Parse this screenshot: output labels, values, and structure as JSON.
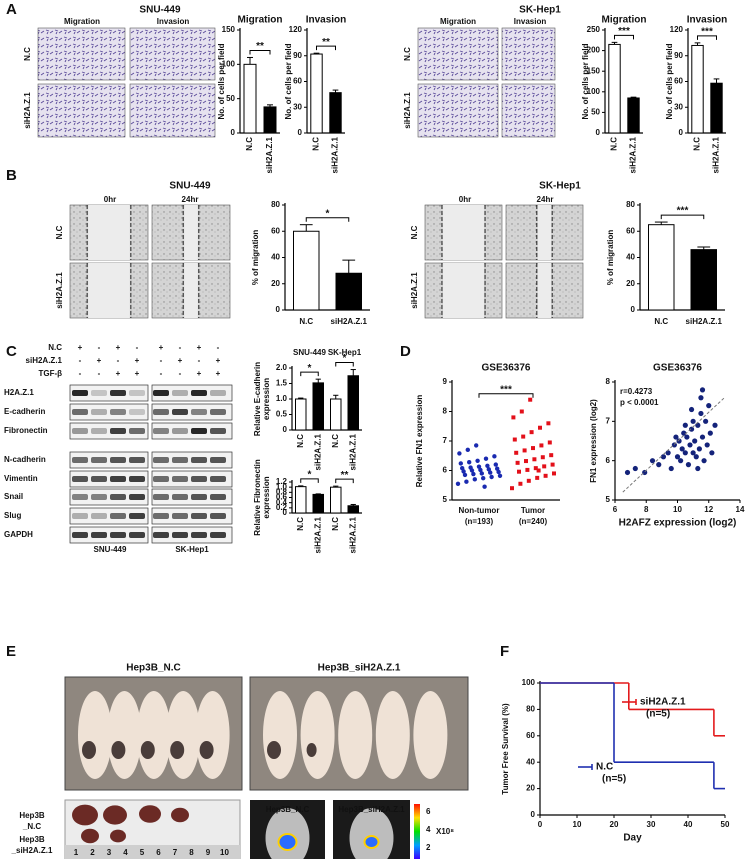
{
  "figure": {
    "panel_labels": [
      "A",
      "B",
      "C",
      "D",
      "E",
      "F"
    ],
    "A": {
      "sections": [
        {
          "cell_line": "SNU-449",
          "column_headers": [
            "Migration",
            "Invasion"
          ],
          "row_labels": [
            "N.C",
            "siH2A.Z.1"
          ]
        },
        {
          "cell_line": "SK-Hep1",
          "column_headers": [
            "Migration",
            "Invasion"
          ],
          "row_labels": [
            "N.C",
            "siH2A.Z.1"
          ]
        }
      ]
    },
    "B": {
      "sections": [
        {
          "cell_line": "SNU-449",
          "column_headers": [
            "0hr",
            "24hr"
          ],
          "row_labels": [
            "N.C",
            "siH2A.Z.1"
          ]
        },
        {
          "cell_line": "SK-Hep1",
          "column_headers": [
            "0hr",
            "24hr"
          ],
          "row_labels": [
            "N.C",
            "siH2A.Z.1"
          ]
        }
      ]
    },
    "C": {
      "conditions": [
        {
          "label": "N.C",
          "signs": [
            "+",
            "-",
            "+",
            "-",
            "+",
            "-",
            "+",
            "-"
          ]
        },
        {
          "label": "siH2A.Z.1",
          "signs": [
            "-",
            "+",
            "-",
            "+",
            "-",
            "+",
            "-",
            "+"
          ]
        },
        {
          "label": "TGF-β",
          "signs": [
            "-",
            "-",
            "+",
            "+",
            "-",
            "-",
            "+",
            "+"
          ]
        }
      ],
      "proteins": [
        "H2A.Z.1",
        "E-cadherin",
        "Fibronectin",
        "N-cadherin",
        "Vimentin",
        "Snail",
        "Slug",
        "GAPDH"
      ],
      "cell_lines": [
        "SNU-449",
        "SK-Hep1"
      ]
    },
    "E": {
      "photo_titles": [
        "Hep3B_N.C",
        "Hep3B_siH2A.Z.1"
      ],
      "tumor_rows": [
        [
          "Hep3B",
          "_N.C"
        ],
        [
          "Hep3B",
          "_siH2A.Z.1"
        ]
      ],
      "ruler": [
        1,
        2,
        3,
        4,
        5,
        6,
        7,
        8,
        9,
        10
      ],
      "imaging_titles": [
        "Hep3B_N.C",
        "Hep3B_siH2A.Z.1"
      ],
      "colorbar_ticks": [
        6,
        4,
        2
      ],
      "colorbar_unit": "X10⁸"
    }
  },
  "chart_data": [
    {
      "type": "bar",
      "title": "Migration",
      "categories": [
        "N.C",
        "siH2A.Z.1"
      ],
      "values": [
        100,
        38
      ],
      "errors": [
        10,
        3
      ],
      "colors": [
        "#ffffff",
        "#000000"
      ],
      "ylabel": "No. of cells per field",
      "ylim": [
        0,
        150
      ],
      "yticks": [
        0,
        50,
        100,
        150
      ],
      "significance": [
        "**"
      ]
    },
    {
      "type": "bar",
      "title": "Invasion",
      "categories": [
        "N.C",
        "siH2A.Z.1"
      ],
      "values": [
        92,
        47
      ],
      "errors": [
        1,
        3
      ],
      "colors": [
        "#ffffff",
        "#000000"
      ],
      "ylabel": "No. of cells per field",
      "ylim": [
        0,
        120
      ],
      "yticks": [
        0,
        30,
        60,
        90,
        120
      ],
      "significance": [
        "**"
      ]
    },
    {
      "type": "bar",
      "title": "Migration",
      "categories": [
        "N.C",
        "siH2A.Z.1"
      ],
      "values": [
        215,
        85
      ],
      "errors": [
        5,
        2
      ],
      "colors": [
        "#ffffff",
        "#000000"
      ],
      "ylabel": "No. of cells per field",
      "ylim": [
        0,
        250
      ],
      "yticks": [
        0,
        50,
        100,
        150,
        200,
        250
      ],
      "significance": [
        "***"
      ]
    },
    {
      "type": "bar",
      "title": "Invasion",
      "categories": [
        "N.C",
        "siH2A.Z.1"
      ],
      "values": [
        102,
        58
      ],
      "errors": [
        3,
        5
      ],
      "colors": [
        "#ffffff",
        "#000000"
      ],
      "ylabel": "No. of cells per field",
      "ylim": [
        0,
        120
      ],
      "yticks": [
        0,
        30,
        60,
        90,
        120
      ],
      "significance": [
        "***"
      ]
    },
    {
      "type": "bar",
      "categories": [
        "N.C",
        "siH2A.Z.1"
      ],
      "values": [
        60,
        28
      ],
      "errors": [
        5,
        10
      ],
      "colors": [
        "#ffffff",
        "#000000"
      ],
      "ylabel": "% of migration",
      "ylim": [
        0,
        80
      ],
      "yticks": [
        0,
        20,
        40,
        60,
        80
      ],
      "significance": [
        "*"
      ]
    },
    {
      "type": "bar",
      "categories": [
        "N.C",
        "siH2A.Z.1"
      ],
      "values": [
        65,
        46
      ],
      "errors": [
        2,
        2
      ],
      "colors": [
        "#ffffff",
        "#000000"
      ],
      "ylabel": "% of migration",
      "ylim": [
        0,
        80
      ],
      "yticks": [
        0,
        20,
        40,
        60,
        80
      ],
      "significance": [
        "***"
      ]
    },
    {
      "type": "bar",
      "groups": [
        "SNU-449",
        "SK-Hep1"
      ],
      "categories": [
        "N.C",
        "siH2A.Z.1",
        "N.C",
        "siH2A.Z.1"
      ],
      "values": [
        1.0,
        1.52,
        1.0,
        1.75
      ],
      "errors": [
        0.03,
        0.12,
        0.12,
        0.2
      ],
      "colors": [
        "#ffffff",
        "#000000",
        "#ffffff",
        "#000000"
      ],
      "ylabel": [
        "Relative E-cadherin",
        "expression"
      ],
      "ylim": [
        0,
        2
      ],
      "yticks": [
        0,
        0.5,
        {
          "value": 1,
          "label": "1.0"
        },
        1.5,
        {
          "value": 2,
          "label": "2.0"
        }
      ],
      "significance": [
        "*",
        "*"
      ]
    },
    {
      "type": "bar",
      "categories": [
        "N.C",
        "siH2A.Z.1",
        "N.C",
        "siH2A.Z.1"
      ],
      "values": [
        1.02,
        0.72,
        1.0,
        0.28
      ],
      "errors": [
        0.03,
        0.02,
        0.04,
        0.05
      ],
      "colors": [
        "#ffffff",
        "#000000",
        "#ffffff",
        "#000000"
      ],
      "ylabel": [
        "Relative Fibronectin",
        "expression"
      ],
      "ylim": [
        0,
        1.2
      ],
      "yticks": [
        0,
        0.2,
        0.4,
        0.6,
        0.8,
        {
          "value": 1,
          "label": "1.0"
        },
        1.2
      ],
      "significance": [
        "*",
        "**"
      ]
    },
    {
      "type": "strip",
      "title": "GSE36376",
      "categories": [
        "Non-tumor",
        "Tumor"
      ],
      "category_notes": [
        "(n=193)",
        "(n=240)"
      ],
      "colors": [
        "#1a2ab0",
        "#e3101a"
      ],
      "ylabel": "Relative FN1 expression",
      "ylim": [
        5,
        9
      ],
      "yticks": [
        5,
        6,
        7,
        8,
        9
      ],
      "significance": [
        "***"
      ],
      "values": [
        [
          5.55,
          5.62,
          5.7,
          5.74,
          5.78,
          5.82,
          5.85,
          5.88,
          5.9,
          5.93,
          5.95,
          5.97,
          6.0,
          6.02,
          6.04,
          6.06,
          6.08,
          6.1,
          6.13,
          6.16,
          6.2,
          6.24,
          6.28,
          6.33,
          6.4,
          6.48,
          6.58,
          6.7,
          6.85,
          5.45
        ],
        [
          5.4,
          5.55,
          5.65,
          5.75,
          5.82,
          5.9,
          5.96,
          6.02,
          6.08,
          6.14,
          6.2,
          6.26,
          6.32,
          6.38,
          6.45,
          6.52,
          6.6,
          6.68,
          6.76,
          6.85,
          6.95,
          7.05,
          7.15,
          7.3,
          7.45,
          7.6,
          7.8,
          8.0,
          8.4,
          6.0
        ]
      ]
    },
    {
      "type": "scatter",
      "title": "GSE36376",
      "color": "#14237a",
      "ylabel": "FN1 expression (log2)",
      "xlabel": "H2AFZ expression (log2)",
      "annotations": [
        "r=0.4273",
        "p < 0.0001"
      ],
      "xlim": [
        6,
        14
      ],
      "xticks": [
        6,
        8,
        10,
        12,
        14
      ],
      "ylim": [
        5,
        8
      ],
      "yticks": [
        5,
        6,
        7,
        8
      ],
      "trend_line": {
        "x": [
          6.5,
          13
        ],
        "values": [
          5.2,
          7.6
        ]
      },
      "x": [
        6.8,
        7.3,
        7.9,
        8.4,
        8.8,
        9.1,
        9.4,
        9.6,
        9.8,
        10.0,
        10.1,
        10.2,
        10.3,
        10.4,
        10.5,
        10.6,
        10.7,
        10.8,
        10.9,
        11.0,
        11.0,
        11.1,
        11.2,
        11.3,
        11.4,
        11.5,
        11.6,
        11.7,
        11.8,
        11.9,
        12.0,
        12.1,
        12.2,
        10.5,
        10.9,
        11.3,
        9.9,
        11.6,
        12.4,
        11.5
      ],
      "values": [
        5.7,
        5.8,
        5.7,
        6.0,
        5.9,
        6.1,
        6.2,
        5.8,
        6.4,
        6.1,
        6.5,
        6.0,
        6.3,
        6.7,
        6.2,
        6.6,
        5.9,
        6.4,
        6.8,
        6.2,
        7.0,
        6.5,
        6.1,
        6.9,
        6.3,
        7.2,
        6.6,
        6.0,
        7.0,
        6.4,
        7.4,
        6.7,
        6.2,
        6.9,
        7.3,
        5.8,
        6.6,
        7.8,
        6.9,
        7.6
      ]
    },
    {
      "type": "line",
      "ylabel": "Tumor Free Survival (%)",
      "xlabel": "Day",
      "xlim": [
        0,
        50
      ],
      "xticks": [
        0,
        10,
        20,
        30,
        40,
        50
      ],
      "ylim": [
        0,
        100
      ],
      "yticks": [
        0,
        20,
        40,
        60,
        80,
        100
      ],
      "series": [
        {
          "name": "siH2A.Z.1",
          "note": "(n=5)",
          "color": "#e31a1c",
          "x": [
            0,
            24,
            47,
            50
          ],
          "values": [
            100,
            80,
            60,
            60
          ]
        },
        {
          "name": "N.C",
          "note": "(n=5)",
          "color": "#1f2fb0",
          "x": [
            0,
            20,
            47,
            50
          ],
          "values": [
            100,
            40,
            20,
            20
          ]
        }
      ]
    }
  ]
}
